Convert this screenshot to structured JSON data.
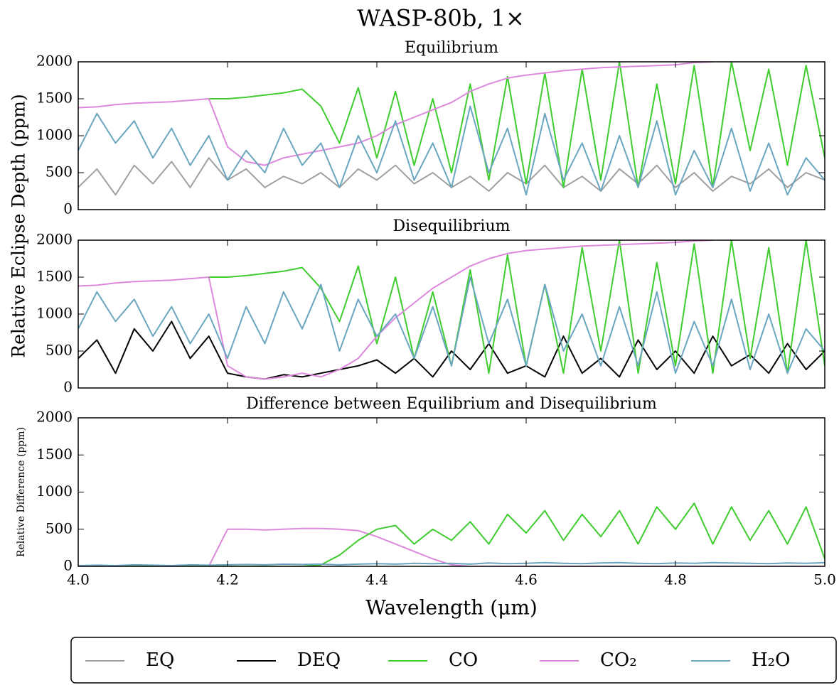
{
  "title": "WASP-80b, 1×",
  "ylabel": "Relative Eclipse Depth (ppm)",
  "legend": [
    {
      "name": "EQ",
      "color": "#a0a0a0"
    },
    {
      "name": "DEQ",
      "color": "#000000"
    },
    {
      "name": "CO",
      "color": "#3fcc2f"
    },
    {
      "name": "CO₂",
      "color": "#dd88dd"
    },
    {
      "name": "H₂O",
      "color": "#6aa6bf"
    }
  ],
  "chart_data": [
    {
      "type": "line",
      "title": "Equilibrium",
      "x": [
        4.0,
        4.025,
        4.05,
        4.075,
        4.1,
        4.125,
        4.15,
        4.175,
        4.2,
        4.225,
        4.25,
        4.275,
        4.3,
        4.325,
        4.35,
        4.375,
        4.4,
        4.425,
        4.45,
        4.475,
        4.5,
        4.525,
        4.55,
        4.575,
        4.6,
        4.625,
        4.65,
        4.675,
        4.7,
        4.725,
        4.75,
        4.775,
        4.8,
        4.825,
        4.85,
        4.875,
        4.9,
        4.925,
        4.95,
        4.975,
        5.0
      ],
      "series": [
        {
          "name": "EQ",
          "color": "#a0a0a0",
          "values": [
            300,
            550,
            200,
            600,
            350,
            650,
            300,
            700,
            400,
            550,
            300,
            450,
            350,
            500,
            300,
            550,
            400,
            600,
            350,
            500,
            300,
            450,
            250,
            500,
            350,
            600,
            300,
            450,
            250,
            550,
            350,
            600,
            300,
            500,
            250,
            450,
            350,
            550,
            300,
            500,
            400
          ]
        },
        {
          "name": "CO",
          "color": "#3fcc2f",
          "values": [
            null,
            null,
            null,
            null,
            null,
            null,
            null,
            1500,
            1500,
            1520,
            1550,
            1580,
            1630,
            1400,
            900,
            1650,
            700,
            1600,
            600,
            1500,
            500,
            1700,
            400,
            1800,
            350,
            1850,
            300,
            1900,
            400,
            2000,
            300,
            1700,
            350,
            1950,
            300,
            2000,
            800,
            1900,
            600,
            1950,
            700
          ]
        },
        {
          "name": "CO₂",
          "color": "#dd88dd",
          "values": [
            1380,
            1390,
            1420,
            1440,
            1450,
            1460,
            1480,
            1500,
            850,
            650,
            600,
            700,
            750,
            800,
            850,
            900,
            1000,
            1150,
            1250,
            1350,
            1450,
            1600,
            1700,
            1780,
            1820,
            1850,
            1880,
            1900,
            1920,
            1930,
            1940,
            1950,
            1960,
            1990,
            2000,
            null,
            null,
            null,
            null,
            null,
            null
          ]
        },
        {
          "name": "H₂O",
          "color": "#6aa6bf",
          "values": [
            800,
            1300,
            900,
            1200,
            700,
            1100,
            600,
            1000,
            400,
            800,
            500,
            1100,
            600,
            900,
            300,
            1000,
            500,
            1200,
            400,
            900,
            300,
            1400,
            500,
            1100,
            200,
            1300,
            400,
            900,
            250,
            1000,
            300,
            1200,
            200,
            800,
            300,
            1100,
            250,
            900,
            200,
            700,
            400
          ]
        }
      ],
      "xlim": [
        4.0,
        5.0
      ],
      "xticks": [
        4.2,
        4.4,
        4.6,
        4.8
      ],
      "xtick_labels": false,
      "ylim": [
        0,
        2000
      ],
      "yticks": [
        0,
        500,
        1000,
        1500,
        2000
      ]
    },
    {
      "type": "line",
      "title": "Disequilibrium",
      "x": [
        4.0,
        4.025,
        4.05,
        4.075,
        4.1,
        4.125,
        4.15,
        4.175,
        4.2,
        4.225,
        4.25,
        4.275,
        4.3,
        4.325,
        4.35,
        4.375,
        4.4,
        4.425,
        4.45,
        4.475,
        4.5,
        4.525,
        4.55,
        4.575,
        4.6,
        4.625,
        4.65,
        4.675,
        4.7,
        4.725,
        4.75,
        4.775,
        4.8,
        4.825,
        4.85,
        4.875,
        4.9,
        4.925,
        4.95,
        4.975,
        5.0
      ],
      "series": [
        {
          "name": "DEQ",
          "color": "#000000",
          "values": [
            400,
            650,
            200,
            800,
            500,
            900,
            400,
            700,
            200,
            150,
            120,
            180,
            150,
            200,
            250,
            300,
            380,
            200,
            400,
            150,
            500,
            250,
            600,
            200,
            300,
            150,
            700,
            200,
            400,
            150,
            650,
            250,
            500,
            200,
            700,
            300,
            450,
            200,
            600,
            250,
            500
          ]
        },
        {
          "name": "CO",
          "color": "#3fcc2f",
          "values": [
            null,
            null,
            null,
            null,
            null,
            null,
            null,
            1500,
            1500,
            1520,
            1550,
            1580,
            1630,
            1350,
            900,
            1650,
            600,
            1500,
            400,
            1300,
            300,
            1600,
            200,
            1800,
            300,
            1400,
            200,
            1900,
            500,
            2000,
            200,
            1700,
            300,
            1950,
            200,
            2000,
            400,
            1900,
            200,
            2000,
            300
          ]
        },
        {
          "name": "CO₂",
          "color": "#dd88dd",
          "values": [
            1380,
            1390,
            1420,
            1440,
            1450,
            1460,
            1480,
            1500,
            300,
            150,
            120,
            150,
            200,
            150,
            250,
            400,
            700,
            950,
            1150,
            1350,
            1500,
            1650,
            1750,
            1820,
            1860,
            1880,
            1900,
            1920,
            1930,
            1940,
            1950,
            1960,
            1970,
            1990,
            2000,
            null,
            null,
            null,
            null,
            null,
            null
          ]
        },
        {
          "name": "H₂O",
          "color": "#6aa6bf",
          "values": [
            800,
            1300,
            900,
            1200,
            700,
            1100,
            600,
            1000,
            400,
            1100,
            600,
            1300,
            800,
            1400,
            500,
            1200,
            700,
            1000,
            400,
            1100,
            300,
            1500,
            600,
            1200,
            300,
            1400,
            500,
            1000,
            300,
            1100,
            300,
            1300,
            200,
            900,
            300,
            1200,
            250,
            1000,
            200,
            800,
            500
          ]
        }
      ],
      "xlim": [
        4.0,
        5.0
      ],
      "xticks": [
        4.2,
        4.4,
        4.6,
        4.8
      ],
      "xtick_labels": false,
      "ylim": [
        0,
        2000
      ],
      "yticks": [
        0,
        500,
        1000,
        1500,
        2000
      ]
    },
    {
      "type": "line",
      "title": "Difference between Equilibrium and Disequilibrium",
      "ylabel": "Relative Difference (ppm)",
      "xlabel": "Wavelength (μm)",
      "x": [
        4.0,
        4.025,
        4.05,
        4.075,
        4.1,
        4.125,
        4.15,
        4.175,
        4.2,
        4.225,
        4.25,
        4.275,
        4.3,
        4.325,
        4.35,
        4.375,
        4.4,
        4.425,
        4.45,
        4.475,
        4.5,
        4.525,
        4.55,
        4.575,
        4.6,
        4.625,
        4.65,
        4.675,
        4.7,
        4.725,
        4.75,
        4.775,
        4.8,
        4.825,
        4.85,
        4.875,
        4.9,
        4.925,
        4.95,
        4.975,
        5.0
      ],
      "series": [
        {
          "name": "CO₂",
          "color": "#dd88dd",
          "values": [
            0,
            0,
            0,
            0,
            0,
            0,
            0,
            0,
            500,
            500,
            490,
            500,
            510,
            510,
            500,
            480,
            400,
            300,
            200,
            100,
            20,
            0,
            0,
            0,
            0,
            0,
            0,
            0,
            0,
            0,
            0,
            0,
            0,
            0,
            0,
            0,
            0,
            0,
            0,
            0,
            0
          ]
        },
        {
          "name": "CO",
          "color": "#3fcc2f",
          "values": [
            0,
            0,
            0,
            0,
            0,
            0,
            0,
            0,
            0,
            0,
            0,
            0,
            0,
            20,
            150,
            350,
            500,
            550,
            300,
            500,
            350,
            600,
            300,
            700,
            450,
            750,
            350,
            700,
            400,
            750,
            300,
            800,
            500,
            850,
            300,
            800,
            350,
            750,
            300,
            800,
            100
          ]
        },
        {
          "name": "H₂O",
          "color": "#6aa6bf",
          "values": [
            10,
            15,
            10,
            20,
            15,
            10,
            20,
            15,
            20,
            25,
            20,
            30,
            25,
            30,
            20,
            30,
            35,
            30,
            40,
            35,
            40,
            30,
            45,
            35,
            40,
            50,
            40,
            35,
            45,
            50,
            40,
            35,
            45,
            40,
            50,
            45,
            40,
            35,
            45,
            40,
            50
          ]
        }
      ],
      "xlim": [
        4.0,
        5.0
      ],
      "xticks": [
        {
          "value": 4.0,
          "label": "4.0"
        },
        4.2,
        4.4,
        4.6,
        4.8,
        {
          "value": 5.0,
          "label": "5.0"
        }
      ],
      "ylim": [
        0,
        2000
      ],
      "yticks": [
        0,
        500,
        1000,
        1500,
        2000
      ]
    }
  ]
}
